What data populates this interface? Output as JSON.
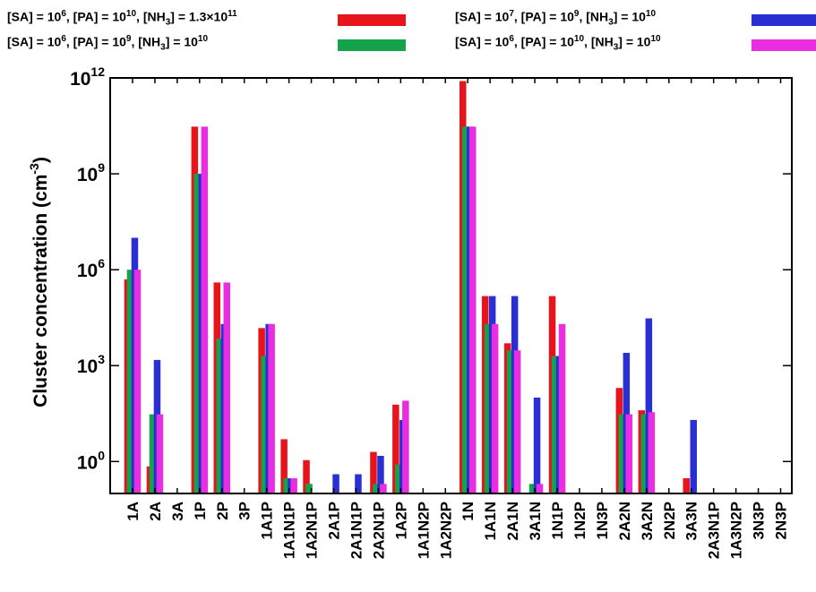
{
  "chart_data": {
    "type": "bar",
    "ylabel": "Cluster concentration (cm",
    "ylabel_exp": "-3",
    "ylabel_close": ")",
    "yscale": "log",
    "ylim": [
      0.1,
      1000000000000.0
    ],
    "yticks": [
      {
        "value": 1,
        "base": "10",
        "exp": "0"
      },
      {
        "value": 1000,
        "base": "10",
        "exp": "3"
      },
      {
        "value": 1000000,
        "base": "10",
        "exp": "6"
      },
      {
        "value": 1000000000,
        "base": "10",
        "exp": "9"
      },
      {
        "value": 1000000000000,
        "base": "10",
        "exp": "12"
      }
    ],
    "categories": [
      "1A",
      "2A",
      "3A",
      "1P",
      "2P",
      "3P",
      "1A1P",
      "1A1N1P",
      "1A2N1P",
      "2A1P",
      "2A1N1P",
      "2A2N1P",
      "1A2P",
      "1A1N2P",
      "1A2N2P",
      "1N",
      "1A1N",
      "2A1N",
      "3A1N",
      "1N1P",
      "1N2P",
      "1N3P",
      "2A2N",
      "3A2N",
      "2N2P",
      "3A3N",
      "2A3N1P",
      "1A3N2P",
      "3N3P",
      "2N3P"
    ],
    "legend": [
      {
        "color": "#e8141c",
        "parts": [
          "[SA] = 10",
          "6",
          ", [PA] = 10",
          "10",
          ", [NH",
          "3",
          "] = 1.3×10",
          "11"
        ]
      },
      {
        "color": "#14a24a",
        "parts": [
          "[SA] = 10",
          "6",
          ", [PA] = 10",
          "9",
          ", [NH",
          "3",
          "] = 10",
          "10"
        ]
      },
      {
        "color": "#2a2fd4",
        "parts": [
          "[SA] = 10",
          "7",
          ", [PA] = 10",
          "9",
          ", [NH",
          "3",
          "] = 10",
          "10"
        ]
      },
      {
        "color": "#e82ee0",
        "parts": [
          "[SA] = 10",
          "6",
          ", [PA] = 10",
          "10",
          ", [NH",
          "3",
          "] = 10",
          "10"
        ]
      }
    ],
    "series": [
      {
        "color": "#e8141c",
        "values": [
          500000,
          0.7,
          null,
          30000000000.0,
          400000,
          null,
          15000,
          5,
          1.1,
          null,
          null,
          2,
          60,
          null,
          null,
          800000000000.0,
          150000,
          5000,
          null,
          150000,
          null,
          null,
          200,
          40,
          null,
          0.3,
          null,
          null,
          null,
          null
        ]
      },
      {
        "color": "#14a24a",
        "values": [
          1000000,
          30,
          null,
          1000000000.0,
          7000,
          null,
          2000,
          0.3,
          0.2,
          null,
          null,
          0.2,
          0.8,
          null,
          null,
          30000000000.0,
          20000,
          3000,
          0.2,
          2000,
          null,
          null,
          30,
          30,
          null,
          null,
          null,
          null,
          null,
          null
        ]
      },
      {
        "color": "#2a2fd4",
        "values": [
          10000000,
          1500,
          null,
          1000000000.0,
          20000,
          null,
          20000,
          0.3,
          null,
          0.4,
          0.4,
          1.5,
          20,
          null,
          null,
          30000000000.0,
          150000,
          150000,
          100,
          2000,
          null,
          null,
          2500,
          30000,
          null,
          20,
          null,
          null,
          null,
          null
        ]
      },
      {
        "color": "#e82ee0",
        "values": [
          1000000,
          30,
          null,
          30000000000.0,
          400000,
          null,
          20000,
          0.3,
          null,
          null,
          null,
          0.2,
          80,
          null,
          null,
          30000000000.0,
          20000,
          3000,
          0.2,
          20000,
          null,
          null,
          30,
          35,
          null,
          null,
          null,
          null,
          null,
          null
        ]
      }
    ]
  }
}
